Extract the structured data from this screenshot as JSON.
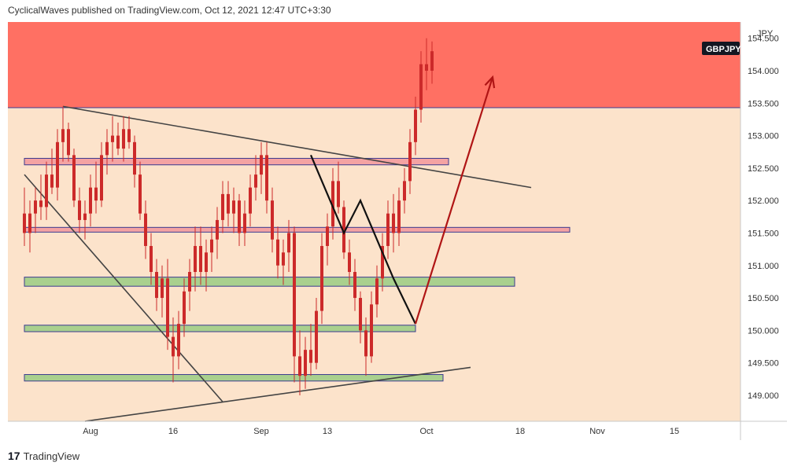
{
  "header": {
    "publisher_line": "CyclicalWaves published on TradingView.com, Oct 12, 2021 12:47 UTC+3:30"
  },
  "footer": {
    "brand": "TradingView",
    "logo_glyph": "17"
  },
  "symbol": {
    "name": "GBPJPY",
    "currency": "JPY"
  },
  "colors": {
    "background": "#fce3cb",
    "resistance_zone": "#ff7063",
    "candle": "#cc2a2a",
    "green_band": "#a9d08e",
    "pink_band": "#f4a3a3",
    "trendline": "#444444",
    "blue_line": "#3d8fe0",
    "projection_arrow": "#b01515"
  },
  "chart_data": {
    "type": "candlestick",
    "y_axis": {
      "ylim": [
        148.6,
        154.75
      ],
      "ticks": [
        "149.000",
        "149.500",
        "150.000",
        "150.500",
        "151.000",
        "151.500",
        "152.000",
        "152.500",
        "153.000",
        "153.500",
        "154.000",
        "154.500"
      ]
    },
    "x_axis": {
      "ticks": [
        {
          "label": "Aug",
          "day": 30
        },
        {
          "label": "16",
          "day": 45
        },
        {
          "label": "Sep",
          "day": 61
        },
        {
          "label": "13",
          "day": 73
        },
        {
          "label": "Oct",
          "day": 91
        },
        {
          "label": "18",
          "day": 108
        },
        {
          "label": "Nov",
          "day": 122
        },
        {
          "label": "15",
          "day": 136
        }
      ]
    },
    "resistance_zone": {
      "from": 153.43,
      "to": 154.75
    },
    "horizontal_bands": [
      {
        "type": "pink",
        "from_day": 18,
        "to_day": 95,
        "low": 152.55,
        "high": 152.65
      },
      {
        "type": "pink",
        "from_day": 18,
        "to_day": 117,
        "low": 151.52,
        "high": 151.58
      },
      {
        "type": "green",
        "from_day": 18,
        "to_day": 107,
        "low": 150.68,
        "high": 150.82
      },
      {
        "type": "green",
        "from_day": 18,
        "to_day": 89,
        "low": 149.98,
        "high": 150.08
      },
      {
        "type": "green",
        "from_day": 18,
        "to_day": 94,
        "low": 149.22,
        "high": 149.32
      }
    ],
    "trendlines": [
      {
        "from": [
          25,
          153.45
        ],
        "to": [
          110,
          152.2
        ]
      },
      {
        "from": [
          29,
          148.6
        ],
        "to": [
          99,
          149.43
        ]
      },
      {
        "from": [
          18,
          152.4
        ],
        "to": [
          54,
          148.9
        ]
      }
    ],
    "wave_path": [
      [
        70,
        152.7
      ],
      [
        76,
        151.5
      ],
      [
        79,
        152
      ],
      [
        85,
        150.8
      ],
      [
        89,
        150.1
      ],
      [
        103,
        153.9
      ]
    ],
    "candles": [
      [
        18,
        151.8,
        152.2,
        151.3,
        151.5
      ],
      [
        19,
        151.5,
        152,
        151.2,
        151.8
      ],
      [
        20,
        151.8,
        152.2,
        151.5,
        152
      ],
      [
        21,
        152,
        152.4,
        151.7,
        151.9
      ],
      [
        22,
        151.9,
        152.6,
        151.7,
        152.4
      ],
      [
        23,
        152.4,
        152.8,
        152.1,
        152.2
      ],
      [
        24,
        152.2,
        153.1,
        152,
        152.9
      ],
      [
        25,
        152.9,
        153.45,
        152.6,
        153.1
      ],
      [
        26,
        153.1,
        153.2,
        152.6,
        152.7
      ],
      [
        27,
        152.7,
        152.8,
        151.9,
        152
      ],
      [
        28,
        152,
        152.2,
        151.5,
        151.7
      ],
      [
        29,
        151.7,
        152,
        151.4,
        151.8
      ],
      [
        30,
        151.8,
        152.4,
        151.6,
        152.2
      ],
      [
        31,
        152.2,
        152.6,
        151.8,
        152
      ],
      [
        32,
        152,
        152.9,
        151.9,
        152.7
      ],
      [
        33,
        152.7,
        153.1,
        152.4,
        152.9
      ],
      [
        34,
        152.9,
        153.3,
        152.6,
        153
      ],
      [
        35,
        153,
        153.2,
        152.7,
        152.8
      ],
      [
        36,
        152.8,
        153.3,
        152.6,
        153.1
      ],
      [
        37,
        153.1,
        153.3,
        152.8,
        152.9
      ],
      [
        38,
        152.9,
        153,
        152.2,
        152.4
      ],
      [
        39,
        152.4,
        152.6,
        151.7,
        151.8
      ],
      [
        40,
        151.8,
        152,
        151.1,
        151.3
      ],
      [
        41,
        151.3,
        151.5,
        150.7,
        150.9
      ],
      [
        42,
        150.9,
        151.1,
        150.3,
        150.5
      ],
      [
        43,
        150.5,
        151,
        150.2,
        150.8
      ],
      [
        44,
        150.8,
        151.1,
        149.7,
        149.9
      ],
      [
        45,
        149.9,
        150.2,
        149.2,
        149.6
      ],
      [
        46,
        149.6,
        150.3,
        149.4,
        150.1
      ],
      [
        47,
        150.1,
        150.8,
        149.9,
        150.6
      ],
      [
        48,
        150.6,
        151.1,
        150.3,
        150.9
      ],
      [
        49,
        150.9,
        151.6,
        150.6,
        151.3
      ],
      [
        50,
        151.3,
        151.6,
        150.7,
        150.9
      ],
      [
        51,
        150.9,
        151.4,
        150.6,
        151.2
      ],
      [
        52,
        151.2,
        151.6,
        150.9,
        151.4
      ],
      [
        53,
        151.4,
        151.9,
        151.1,
        151.7
      ],
      [
        54,
        151.7,
        152.3,
        151.5,
        152.1
      ],
      [
        55,
        152.1,
        152.3,
        151.6,
        151.8
      ],
      [
        56,
        151.8,
        152.2,
        151.5,
        152
      ],
      [
        57,
        152,
        152.1,
        151.3,
        151.5
      ],
      [
        58,
        151.5,
        152,
        151.3,
        151.8
      ],
      [
        59,
        151.8,
        152.4,
        151.6,
        152.2
      ],
      [
        60,
        152.2,
        152.7,
        152,
        152.4
      ],
      [
        61,
        152.4,
        152.9,
        152.1,
        152.7
      ],
      [
        62,
        152.7,
        152.9,
        151.8,
        152
      ],
      [
        63,
        152,
        152.2,
        151.2,
        151.4
      ],
      [
        64,
        151.4,
        151.6,
        150.8,
        151
      ],
      [
        65,
        151,
        151.4,
        150.7,
        151.2
      ],
      [
        66,
        151.2,
        151.7,
        150.9,
        151.5
      ],
      [
        67,
        151.5,
        151.6,
        149.2,
        149.6
      ],
      [
        68,
        149.6,
        150,
        149,
        149.3
      ],
      [
        69,
        149.3,
        149.9,
        149.1,
        149.7
      ],
      [
        70,
        149.7,
        150.1,
        149.3,
        149.5
      ],
      [
        71,
        149.5,
        150.5,
        149.4,
        150.3
      ],
      [
        72,
        150.3,
        151.5,
        150.1,
        151.3
      ],
      [
        73,
        151.3,
        151.8,
        151,
        151.6
      ],
      [
        74,
        151.6,
        152.5,
        151.4,
        152.3
      ],
      [
        75,
        152.3,
        152.6,
        151.8,
        151.9
      ],
      [
        76,
        151.9,
        152,
        151.1,
        151.2
      ],
      [
        77,
        151.2,
        151.4,
        150.7,
        150.9
      ],
      [
        78,
        150.9,
        151.1,
        150.3,
        150.5
      ],
      [
        79,
        150.5,
        150.6,
        149.8,
        150
      ],
      [
        80,
        150,
        150.2,
        149.3,
        149.6
      ],
      [
        81,
        149.6,
        150.6,
        149.5,
        150.4
      ],
      [
        82,
        150.4,
        151,
        150.2,
        150.8
      ],
      [
        83,
        150.8,
        151.5,
        150.6,
        151.3
      ],
      [
        84,
        151.3,
        152,
        151.1,
        151.8
      ],
      [
        85,
        151.8,
        152.1,
        151.2,
        151.5
      ],
      [
        86,
        151.5,
        152.2,
        151.3,
        152
      ],
      [
        87,
        152,
        152.5,
        151.8,
        152.3
      ],
      [
        88,
        152.3,
        153.1,
        152.1,
        152.9
      ],
      [
        89,
        152.9,
        153.6,
        152.7,
        153.4
      ],
      [
        90,
        153.4,
        154.3,
        153.2,
        154.1
      ],
      [
        91,
        154.1,
        154.5,
        153.7,
        154
      ],
      [
        92,
        154,
        154.45,
        153.8,
        154.3
      ]
    ]
  }
}
